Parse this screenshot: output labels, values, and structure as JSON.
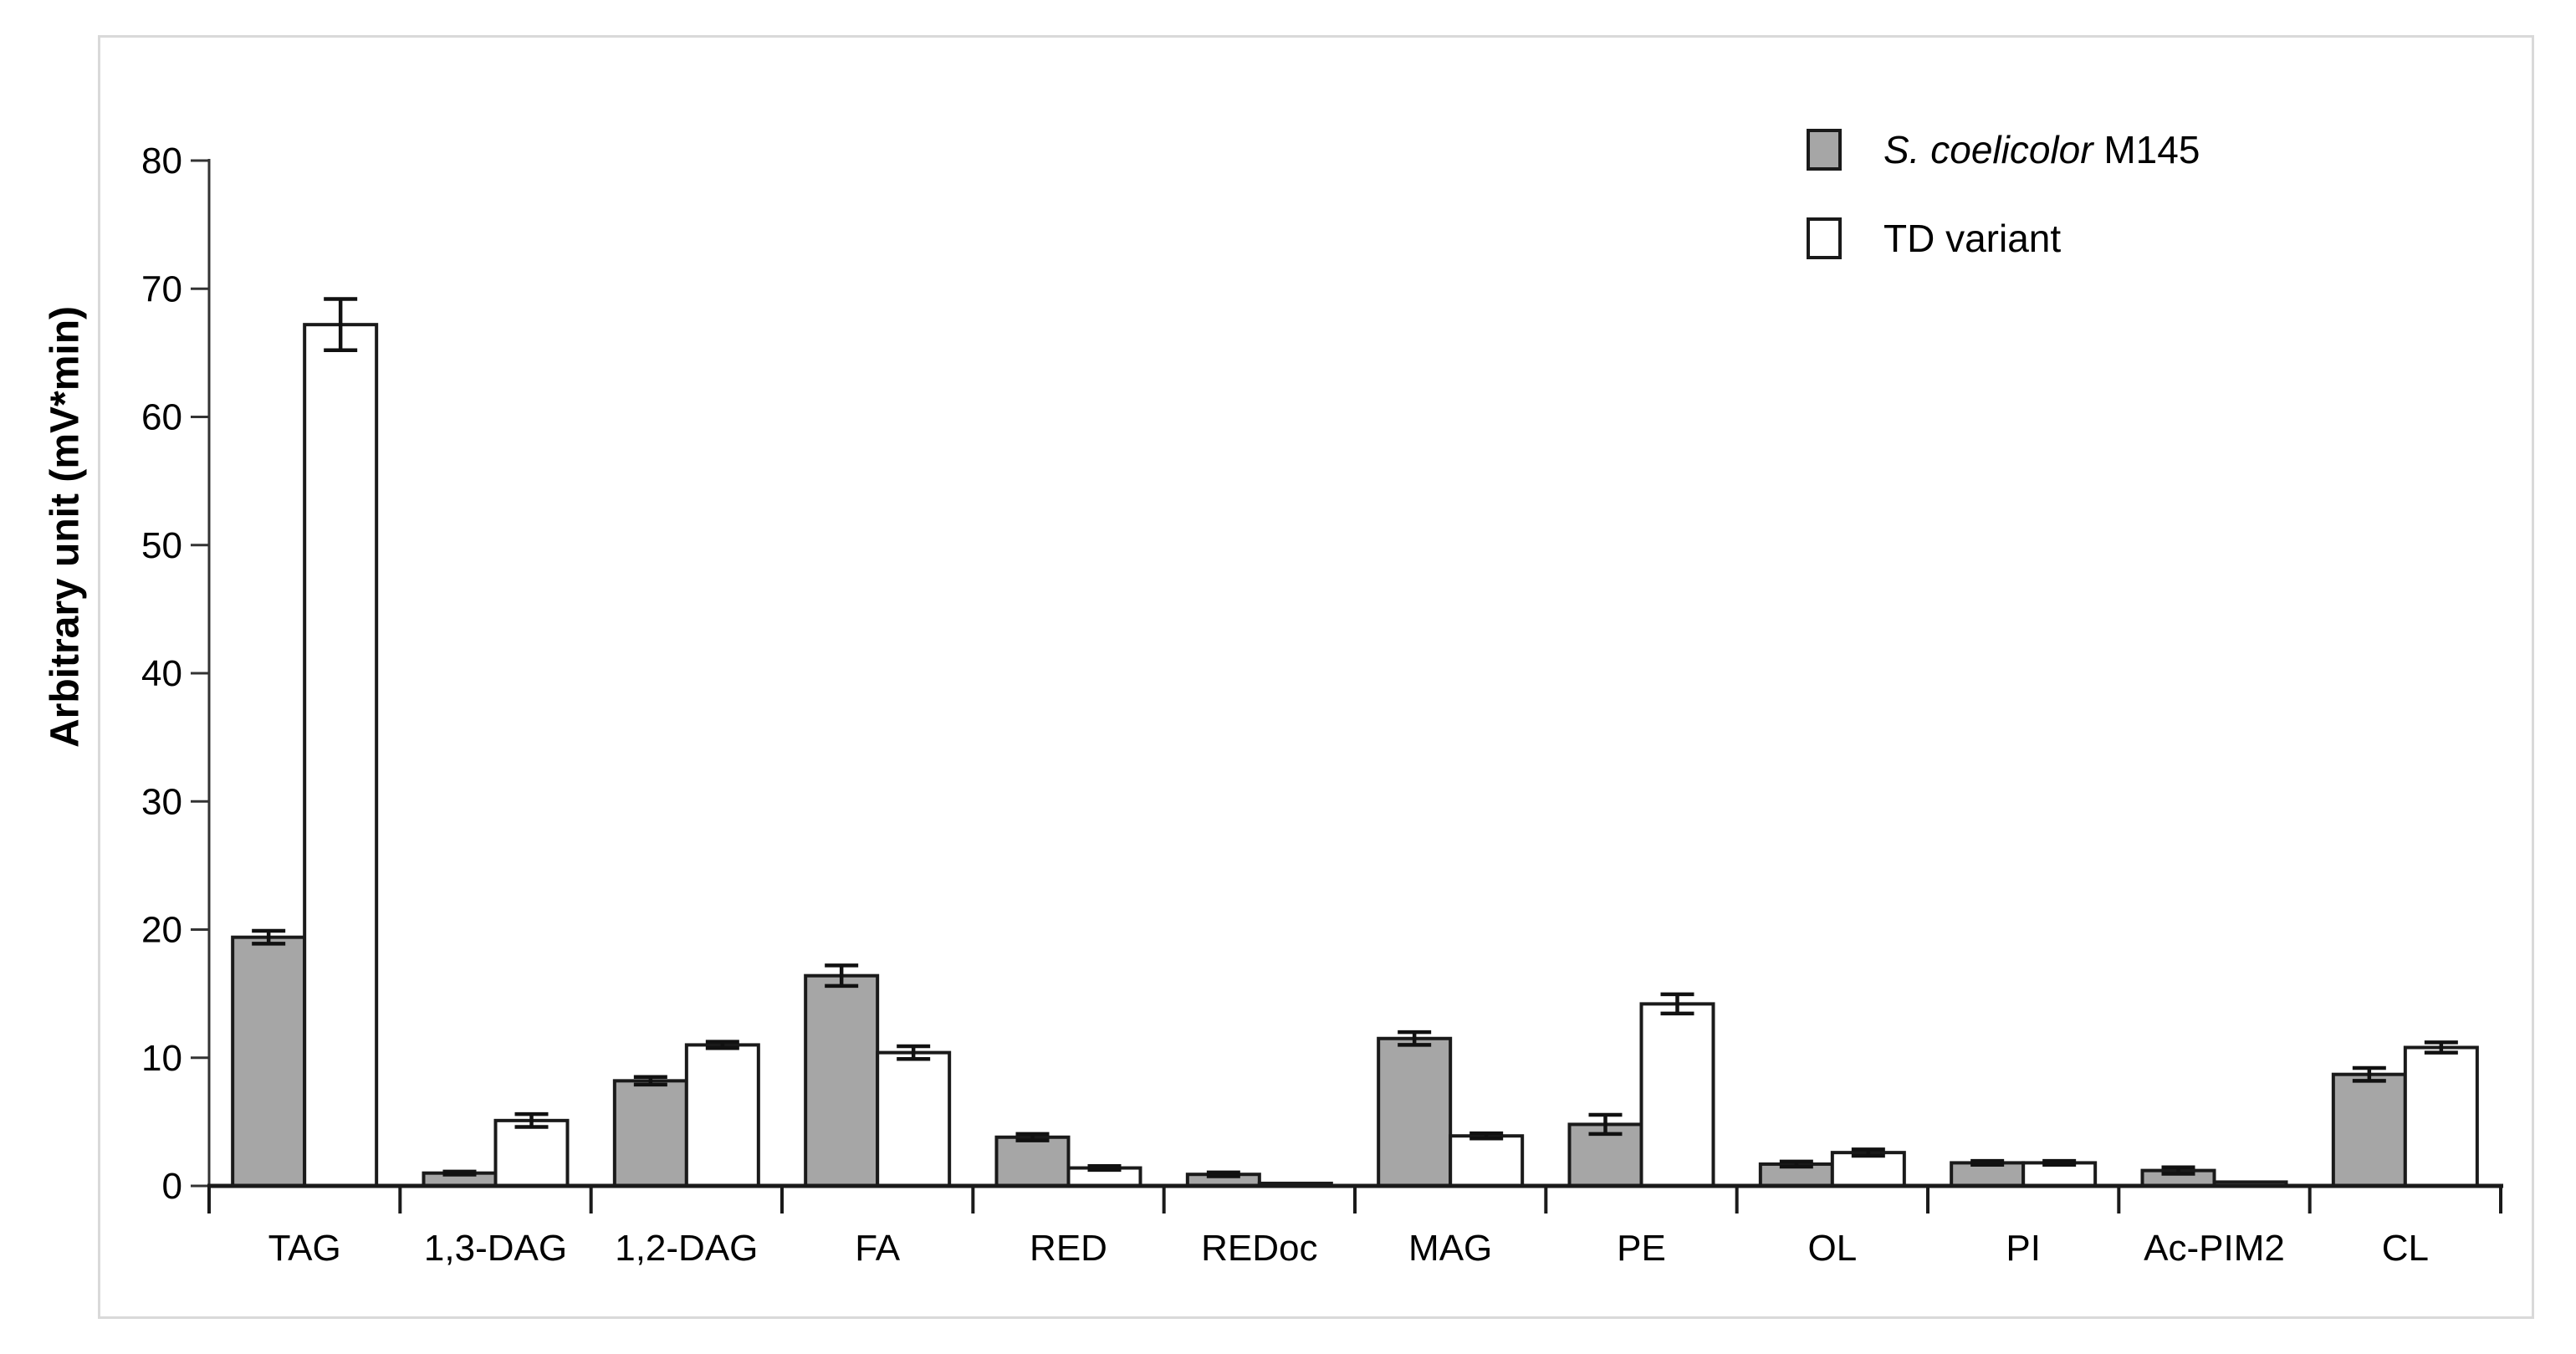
{
  "figure": {
    "background": "#ffffff",
    "frame_color": "#d9d9d9",
    "axis_color": "#1a1a1a",
    "text_color": "#000000"
  },
  "legend": {
    "items": [
      {
        "label_italic": "S. coelicolor",
        "label_text": " M145",
        "fill": "#a6a6a6"
      },
      {
        "label_italic": "",
        "label_text": "TD variant",
        "fill": "#ffffff"
      }
    ]
  },
  "chart_data": {
    "type": "bar",
    "title": "",
    "xlabel": "",
    "ylabel": "Arbitrary unit (mV*min)",
    "ylim": [
      0,
      80
    ],
    "ytick_step": 10,
    "yticks": [
      0,
      10,
      20,
      30,
      40,
      50,
      60,
      70,
      80
    ],
    "grid": false,
    "legend_position": "top-right",
    "bar_outline": "#1a1a1a",
    "error_bar_color": "#111111",
    "categories": [
      "TAG",
      "1,3-DAG",
      "1,2-DAG",
      "FA",
      "RED",
      "REDoc",
      "MAG",
      "PE",
      "OL",
      "PI",
      "Ac-PIM2",
      "CL"
    ],
    "series": [
      {
        "name": "S. coelicolor M145",
        "fill": "#a6a6a6",
        "values": [
          19.4,
          1.0,
          8.2,
          16.4,
          3.8,
          0.9,
          11.5,
          4.8,
          1.7,
          1.8,
          1.2,
          8.7
        ],
        "errors": [
          0.5,
          0.12,
          0.3,
          0.8,
          0.25,
          0.15,
          0.5,
          0.75,
          0.2,
          0.15,
          0.25,
          0.5
        ]
      },
      {
        "name": "TD variant",
        "fill": "#ffffff",
        "values": [
          67.2,
          5.1,
          11.0,
          10.4,
          1.4,
          0.2,
          3.9,
          14.2,
          2.6,
          1.8,
          0.3,
          10.8
        ],
        "errors": [
          2.0,
          0.5,
          0.25,
          0.5,
          0.15,
          0,
          0.2,
          0.75,
          0.25,
          0.15,
          0,
          0.4
        ]
      }
    ]
  }
}
